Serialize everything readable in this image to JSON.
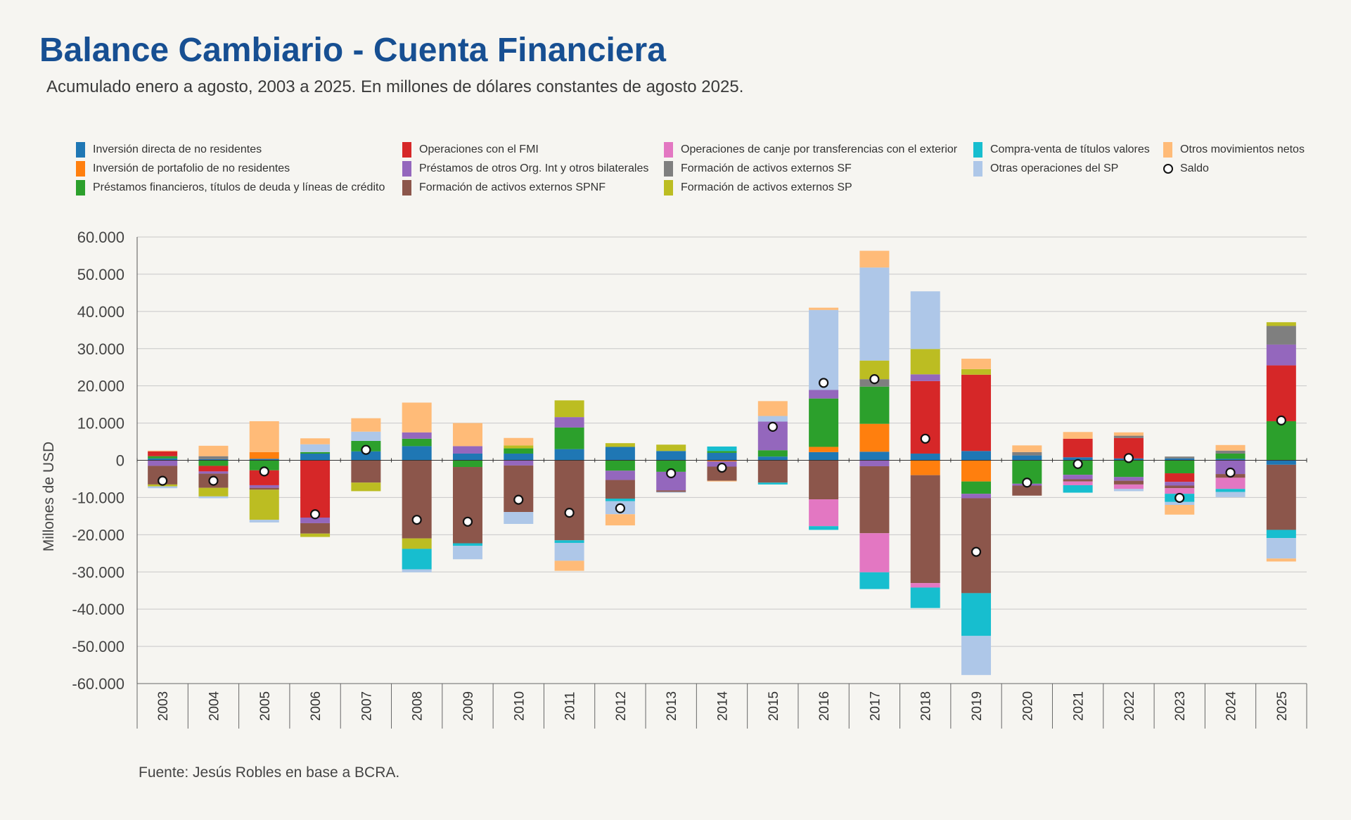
{
  "title": "Balance Cambiario - Cuenta Financiera",
  "subtitle": "Acumulado enero a agosto, 2003 a 2025. En millones de dólares constantes de agosto 2025.",
  "source": "Fuente: Jesús Robles en base a BCRA.",
  "legend": [
    {
      "label": "Inversión directa de no residentes",
      "color": "#1f77b4",
      "type": "swatch"
    },
    {
      "label": "Inversión de portafolio de no residentes",
      "color": "#ff7f0e",
      "type": "swatch"
    },
    {
      "label": "Préstamos financieros, títulos de deuda y líneas de crédito",
      "color": "#2ca02c",
      "type": "swatch"
    },
    {
      "label": "Operaciones con el FMI",
      "color": "#d62728",
      "type": "swatch"
    },
    {
      "label": "Préstamos de otros Org. Int y otros bilaterales",
      "color": "#9467bd",
      "type": "swatch"
    },
    {
      "label": "Formación de activos externos SPNF",
      "color": "#8c564b",
      "type": "swatch"
    },
    {
      "label": "Operaciones de canje por transferencias con el exterior",
      "color": "#e377c2",
      "type": "swatch"
    },
    {
      "label": "Formación de activos externos SF",
      "color": "#7f7f7f",
      "type": "swatch"
    },
    {
      "label": "Formación de activos externos SP",
      "color": "#bcbd22",
      "type": "swatch"
    },
    {
      "label": "Compra-venta de títulos valores",
      "color": "#17becf",
      "type": "swatch"
    },
    {
      "label": "Otras operaciones del SP",
      "color": "#aec7e8",
      "type": "swatch"
    },
    {
      "label": "Otros movimientos netos",
      "color": "#ffbb78",
      "type": "swatch"
    },
    {
      "label": "Saldo",
      "color": "#000000",
      "type": "dot"
    }
  ],
  "chart_data": {
    "type": "bar",
    "stacked": true,
    "title": "Balance Cambiario - Cuenta Financiera",
    "ylabel": "Millones de USD",
    "xlabel": "",
    "ylim": [
      -60000,
      60000
    ],
    "yticks": [
      60000,
      50000,
      40000,
      30000,
      20000,
      10000,
      0,
      -10000,
      -20000,
      -30000,
      -40000,
      -50000,
      -60000
    ],
    "ytick_labels": [
      "60.000",
      "50.000",
      "40.000",
      "30.000",
      "20.000",
      "10.000",
      "0",
      "-10.000",
      "-20.000",
      "-30.000",
      "-40.000",
      "-50.000",
      "-60.000"
    ],
    "grid": true,
    "legend_position": "top",
    "categories": [
      "2003",
      "2004",
      "2005",
      "2006",
      "2007",
      "2008",
      "2009",
      "2010",
      "2011",
      "2012",
      "2013",
      "2014",
      "2015",
      "2016",
      "2017",
      "2018",
      "2019",
      "2020",
      "2021",
      "2022",
      "2023",
      "2024",
      "2025"
    ],
    "series": [
      {
        "name": "Inversión directa de no residentes",
        "color": "#1f77b4",
        "values": [
          500,
          300,
          400,
          1800,
          2400,
          3800,
          1800,
          1800,
          3000,
          3600,
          2500,
          2000,
          1000,
          2200,
          2300,
          1800,
          2500,
          1300,
          800,
          500,
          500,
          400,
          -1200
        ]
      },
      {
        "name": "Inversión de portafolio de no residentes",
        "color": "#ff7f0e",
        "values": [
          0,
          0,
          1800,
          0,
          0,
          0,
          0,
          0,
          0,
          0,
          0,
          -300,
          0,
          1400,
          7500,
          -4000,
          -5700,
          0,
          0,
          0,
          0,
          0,
          0
        ]
      },
      {
        "name": "Préstamos financieros, títulos de deuda y líneas de crédito",
        "color": "#2ca02c",
        "values": [
          600,
          -1500,
          -2700,
          400,
          2800,
          2000,
          -1800,
          1400,
          5800,
          -2800,
          -3100,
          500,
          1700,
          13000,
          10000,
          0,
          -3300,
          -6300,
          -3900,
          -4500,
          -3500,
          1400,
          10500
        ]
      },
      {
        "name": "Operaciones con el FMI",
        "color": "#d62728",
        "values": [
          1300,
          -1500,
          -4000,
          -15400,
          0,
          0,
          0,
          0,
          0,
          0,
          0,
          0,
          0,
          0,
          0,
          19500,
          20500,
          0,
          5000,
          5500,
          -2300,
          0,
          15000
        ]
      },
      {
        "name": "Préstamos de otros Org. Int y otros bilaterales",
        "color": "#9467bd",
        "values": [
          -1500,
          -600,
          -700,
          -1500,
          0,
          1700,
          2000,
          -1400,
          2800,
          -2500,
          -5000,
          -1400,
          7700,
          2300,
          -1600,
          1800,
          -1200,
          -500,
          -1200,
          -1000,
          -1000,
          -3700,
          5600
        ]
      },
      {
        "name": "Formación de activos externos SPNF",
        "color": "#8c564b",
        "values": [
          -5000,
          -3800,
          -500,
          -2800,
          -6000,
          -21000,
          -20500,
          -12500,
          -21500,
          -5000,
          -400,
          -3800,
          -6000,
          -10500,
          -18000,
          -29000,
          -25500,
          -2700,
          -600,
          -1000,
          -700,
          -1000,
          -17500
        ]
      },
      {
        "name": "Operaciones de canje por transferencias con el exterior",
        "color": "#e377c2",
        "values": [
          0,
          0,
          0,
          0,
          0,
          0,
          0,
          0,
          0,
          0,
          0,
          0,
          0,
          -7200,
          -10500,
          -1200,
          0,
          0,
          -1000,
          -1200,
          -1500,
          -3000,
          0
        ]
      },
      {
        "name": "Formación de activos externos SF",
        "color": "#7f7f7f",
        "values": [
          0,
          800,
          0,
          0,
          0,
          0,
          0,
          0,
          0,
          0,
          0,
          0,
          0,
          0,
          2000,
          0,
          0,
          900,
          0,
          600,
          500,
          800,
          5000
        ]
      },
      {
        "name": "Formación de activos externos SP",
        "color": "#bcbd22",
        "values": [
          -500,
          -2300,
          -8100,
          -900,
          -2300,
          -2800,
          0,
          800,
          4500,
          1000,
          1700,
          0,
          0,
          0,
          5000,
          6800,
          1500,
          0,
          0,
          0,
          0,
          0,
          1000
        ]
      },
      {
        "name": "Compra-venta de títulos valores",
        "color": "#17becf",
        "values": [
          0,
          0,
          0,
          0,
          0,
          -5500,
          -700,
          0,
          -700,
          -700,
          0,
          1200,
          -500,
          -1000,
          -4500,
          -5500,
          -11500,
          0,
          -2000,
          0,
          -2200,
          -800,
          -2200
        ]
      },
      {
        "name": "Otras operaciones del SP",
        "color": "#aec7e8",
        "values": [
          -500,
          -500,
          -700,
          2100,
          2500,
          -800,
          -3600,
          -3200,
          -4800,
          -3500,
          -200,
          0,
          1500,
          21500,
          25000,
          15500,
          -10500,
          0,
          0,
          -600,
          -800,
          -1400,
          -5500
        ]
      },
      {
        "name": "Otros movimientos netos",
        "color": "#ffbb78",
        "values": [
          200,
          2800,
          8300,
          1600,
          3600,
          8000,
          6200,
          2000,
          -2700,
          -3000,
          0,
          -200,
          4000,
          600,
          4500,
          0,
          2800,
          1800,
          1800,
          900,
          -2600,
          1500,
          -800
        ]
      }
    ],
    "saldo": {
      "name": "Saldo",
      "values": [
        -5500,
        -5500,
        -3000,
        -14500,
        2800,
        -16000,
        -16500,
        -10600,
        -14100,
        -12900,
        -3500,
        -2000,
        9000,
        20800,
        21800,
        5800,
        -24600,
        -6000,
        -1000,
        600,
        -10100,
        -3300,
        10700
      ]
    }
  }
}
